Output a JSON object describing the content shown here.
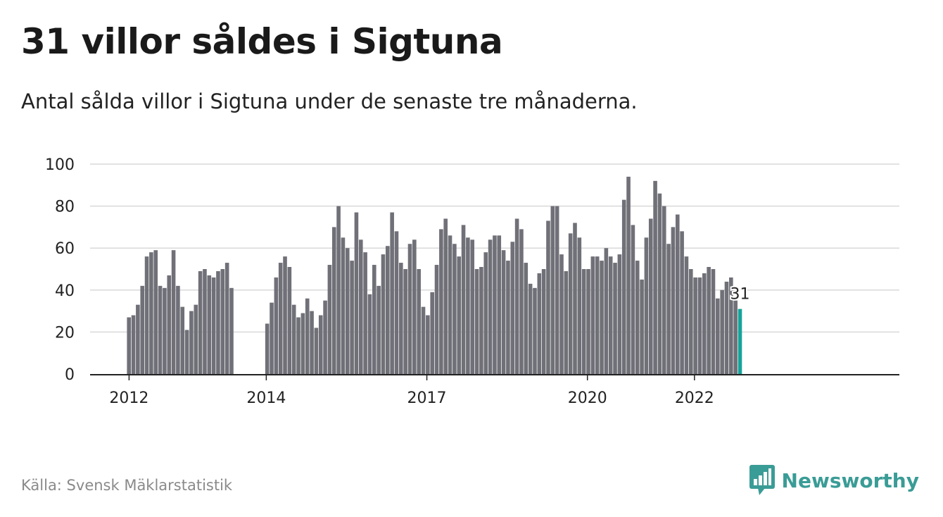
{
  "header": {
    "title": "31 villor såldes i Sigtuna",
    "subtitle": "Antal sålda villor i Sigtuna under de senaste tre månaderna."
  },
  "footer": {
    "source": "Källa: Svensk Mäklarstatistik",
    "brand": "Newsworthy",
    "brand_icon": "bar-chart-speech-bubble-icon"
  },
  "colors": {
    "bar": "#707078",
    "highlight": "#17a39a",
    "grid": "#d9d9d9",
    "axis": "#222222",
    "brand": "#3a9c96"
  },
  "chart_data": {
    "type": "bar",
    "title": "31 villor såldes i Sigtuna",
    "subtitle": "Antal sålda villor i Sigtuna under de senaste tre månaderna.",
    "xlabel": "",
    "ylabel": "",
    "ylim": [
      0,
      100
    ],
    "yticks": [
      0,
      20,
      40,
      60,
      80,
      100
    ],
    "xticks": [
      "2012",
      "2014",
      "2017",
      "2020",
      "2022"
    ],
    "grid": true,
    "legend": "none",
    "annotation": {
      "label": "31",
      "value": 31
    },
    "groups": [
      [
        27,
        28,
        33,
        42,
        56,
        58,
        59,
        42,
        41,
        47,
        59,
        42,
        32,
        21,
        30,
        33,
        49,
        50,
        47,
        46,
        49,
        50,
        53,
        41
      ],
      [
        24,
        34,
        46,
        53,
        56,
        51,
        33,
        27,
        29,
        36,
        30,
        22,
        28,
        35,
        52,
        70,
        80,
        65,
        60,
        54,
        77,
        64,
        58,
        38,
        52,
        42,
        57,
        61,
        77,
        68,
        53,
        50,
        62,
        64,
        50,
        32,
        28,
        39,
        52,
        69,
        74,
        66,
        62,
        56,
        71,
        65,
        64,
        50,
        51,
        58,
        64,
        66,
        66,
        59,
        54,
        63,
        74,
        69,
        53,
        43,
        41,
        48,
        50,
        73,
        80,
        80,
        57,
        49,
        67,
        72,
        65,
        50,
        50,
        56,
        56,
        54,
        60,
        56,
        53,
        57,
        83,
        94,
        71,
        54,
        45,
        65,
        74,
        92,
        86,
        80,
        62,
        70,
        76,
        68,
        56,
        50,
        46,
        46,
        48,
        51,
        50,
        36,
        40,
        44,
        46,
        35,
        31
      ]
    ]
  }
}
